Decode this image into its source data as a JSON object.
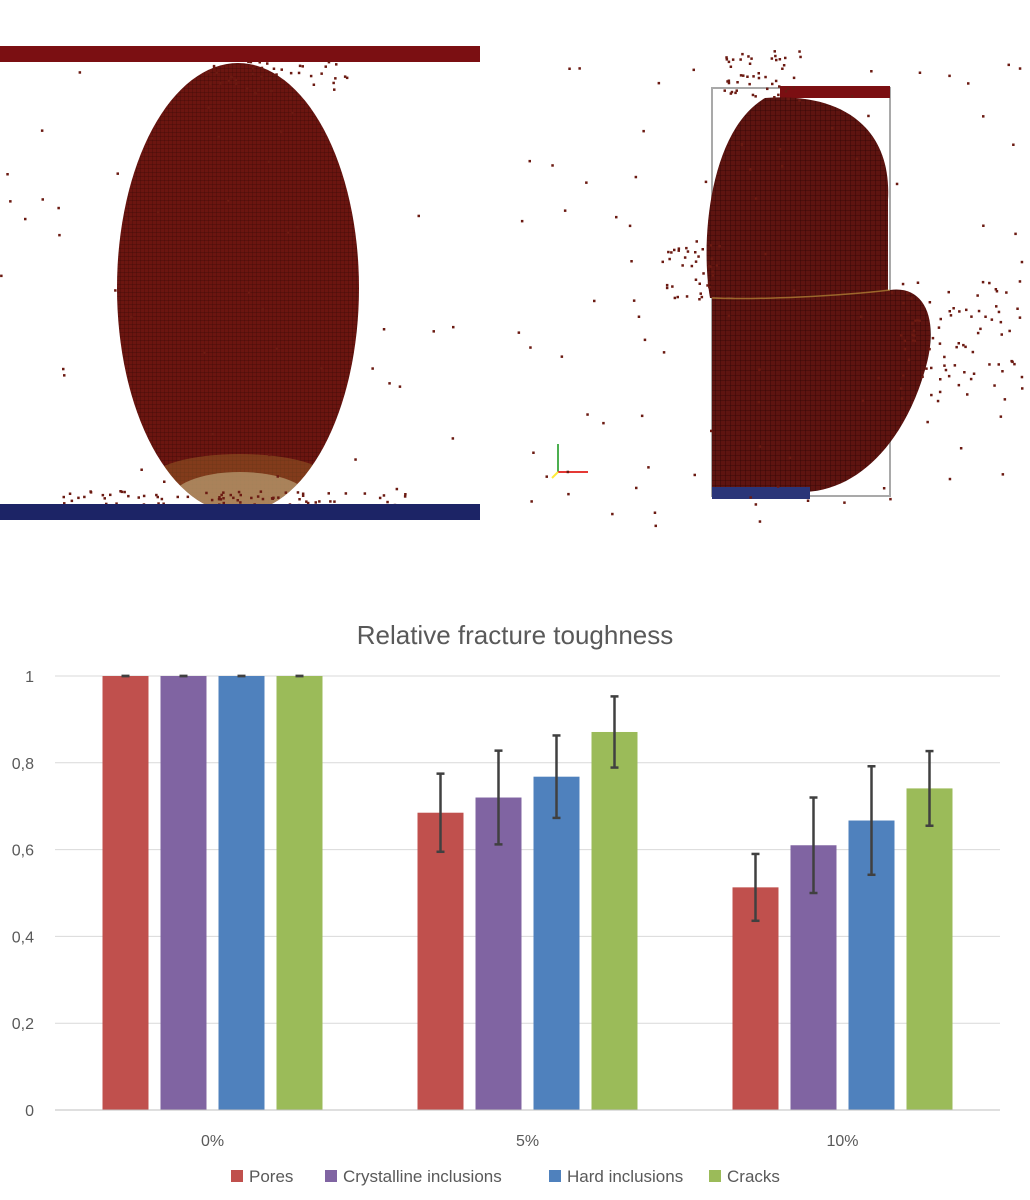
{
  "simulation_images": [
    {
      "name": "uniaxial-compression-simulation",
      "upper_plate_color": "#7b0f12",
      "lower_plate_color": "#1c2466",
      "specimen_color": "#6b1510"
    },
    {
      "name": "fractured-specimen-simulation",
      "upper_plate_color": "#7b0f12",
      "lower_plate_color": "#2a3578",
      "specimen_color": "#5e1410"
    }
  ],
  "chart_data": {
    "type": "bar",
    "title": "Relative fracture toughness",
    "categories": [
      "0%",
      "5%",
      "10%"
    ],
    "ylim": [
      0,
      1
    ],
    "yticks": [
      0,
      0.2,
      0.4,
      0.6,
      0.8,
      1
    ],
    "ytick_labels": [
      "0",
      "0,2",
      "0,4",
      "0,6",
      "0,8",
      "1"
    ],
    "grid": true,
    "legend_position": "bottom",
    "series": [
      {
        "name": "Pores",
        "color": "#c0504d",
        "values": [
          1.0,
          0.685,
          0.513
        ],
        "errors": [
          0.0,
          0.09,
          0.077
        ]
      },
      {
        "name": "Crystalline inclusions",
        "color": "#8064a2",
        "values": [
          1.0,
          0.72,
          0.61
        ],
        "errors": [
          0.0,
          0.108,
          0.11
        ]
      },
      {
        "name": "Hard inclusions",
        "color": "#4f81bd",
        "values": [
          1.0,
          0.768,
          0.667
        ],
        "errors": [
          0.0,
          0.095,
          0.125
        ]
      },
      {
        "name": "Cracks",
        "color": "#9bbb59",
        "values": [
          1.0,
          0.871,
          0.741
        ],
        "errors": [
          0.0,
          0.082,
          0.086
        ]
      }
    ]
  }
}
